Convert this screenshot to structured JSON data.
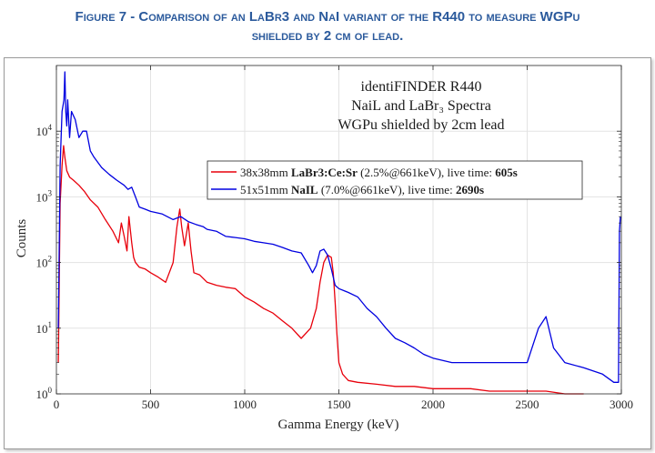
{
  "figure_caption": {
    "line1": "Figure 7 - Comparison of an LaBr3 and NaI variant of the R440 to measure WGPu",
    "line2": "shielded by 2 cm of lead."
  },
  "colors": {
    "caption": "#2b5a9c",
    "labr3": "#e8000b",
    "nai": "#0000e0"
  },
  "chart_data": {
    "type": "line",
    "title_lines": [
      "identiFINDER R440",
      "NaiL and LaBr₃ Spectra",
      "WGPu shielded by 2cm lead"
    ],
    "xlabel": "Gamma Energy (keV)",
    "ylabel": "Counts",
    "xlim": [
      0,
      3000
    ],
    "ylim": [
      1,
      100000
    ],
    "yscale": "log",
    "xticks": [
      0,
      500,
      1000,
      1500,
      2000,
      2500,
      3000
    ],
    "xtick_labels": [
      "0",
      "500",
      "1000",
      "1500",
      "2000",
      "2500",
      "3000"
    ],
    "yticks": [
      1,
      10,
      100,
      1000,
      10000
    ],
    "ytick_labels": [
      {
        "base": "10",
        "exp": "0"
      },
      {
        "base": "10",
        "exp": "1"
      },
      {
        "base": "10",
        "exp": "2"
      },
      {
        "base": "10",
        "exp": "3"
      },
      {
        "base": "10",
        "exp": "4"
      }
    ],
    "grid": true,
    "legend_position": "center-right",
    "series": [
      {
        "name": "LaBr3:Ce:Sr",
        "legend": {
          "pre": "38x38mm ",
          "det": "LaBr3:Ce:Sr",
          "mid": " (2.5%@661keV), live time: ",
          "time": "605s"
        },
        "color": "#e8000b",
        "x": [
          10,
          20,
          30,
          38,
          45,
          55,
          70,
          90,
          120,
          150,
          180,
          220,
          260,
          300,
          330,
          345,
          360,
          375,
          385,
          400,
          410,
          420,
          440,
          470,
          500,
          540,
          580,
          620,
          640,
          655,
          665,
          680,
          700,
          715,
          730,
          760,
          800,
          850,
          900,
          950,
          1000,
          1050,
          1100,
          1150,
          1200,
          1250,
          1300,
          1350,
          1380,
          1400,
          1420,
          1440,
          1460,
          1470,
          1480,
          1490,
          1500,
          1520,
          1550,
          1600,
          1700,
          1800,
          1900,
          2000,
          2100,
          2200,
          2300,
          2400,
          2500,
          2600,
          2700,
          2800
        ],
        "values": [
          3,
          800,
          3000,
          6000,
          4000,
          2500,
          2000,
          1800,
          1500,
          1200,
          900,
          700,
          450,
          300,
          200,
          400,
          250,
          150,
          500,
          200,
          120,
          100,
          85,
          80,
          70,
          60,
          50,
          100,
          350,
          650,
          350,
          180,
          400,
          150,
          70,
          65,
          50,
          45,
          42,
          40,
          30,
          25,
          20,
          17,
          13,
          10,
          7,
          10,
          20,
          50,
          100,
          130,
          120,
          70,
          25,
          8,
          3,
          2,
          1.6,
          1.5,
          1.4,
          1.3,
          1.3,
          1.2,
          1.2,
          1.2,
          1.1,
          1.1,
          1.1,
          1.1,
          1,
          1
        ]
      },
      {
        "name": "NaIL",
        "legend": {
          "pre": "51x51mm ",
          "det": "NaIL",
          "mid": " (7.0%@661keV), live time: ",
          "time": "2690s"
        },
        "color": "#0000e0",
        "x": [
          10,
          20,
          30,
          40,
          45,
          50,
          55,
          60,
          70,
          80,
          100,
          120,
          140,
          160,
          180,
          200,
          240,
          280,
          320,
          360,
          380,
          400,
          420,
          440,
          470,
          500,
          560,
          620,
          660,
          700,
          740,
          780,
          800,
          850,
          900,
          950,
          1000,
          1050,
          1100,
          1150,
          1200,
          1250,
          1300,
          1340,
          1360,
          1380,
          1400,
          1420,
          1440,
          1460,
          1480,
          1500,
          1550,
          1600,
          1650,
          1700,
          1750,
          1800,
          1850,
          1900,
          1950,
          2000,
          2100,
          2200,
          2300,
          2400,
          2500,
          2560,
          2600,
          2640,
          2700,
          2800,
          2900,
          2960,
          2985,
          2990,
          2995
        ],
        "values": [
          10,
          3000,
          20000,
          30000,
          80000,
          20000,
          12000,
          30000,
          8000,
          20000,
          15000,
          8000,
          10000,
          10000,
          5000,
          4000,
          2800,
          2200,
          1800,
          1500,
          1300,
          1400,
          1000,
          700,
          650,
          600,
          550,
          450,
          500,
          420,
          380,
          350,
          320,
          300,
          250,
          240,
          230,
          210,
          200,
          190,
          170,
          150,
          140,
          90,
          70,
          90,
          150,
          160,
          130,
          80,
          45,
          40,
          35,
          30,
          20,
          15,
          10,
          7,
          6,
          5,
          4,
          3.5,
          3,
          3,
          3,
          3,
          3,
          10,
          15,
          5,
          3,
          2.5,
          2,
          1.5,
          1.5,
          300,
          500
        ]
      }
    ],
    "x_axis_marker": "0"
  }
}
